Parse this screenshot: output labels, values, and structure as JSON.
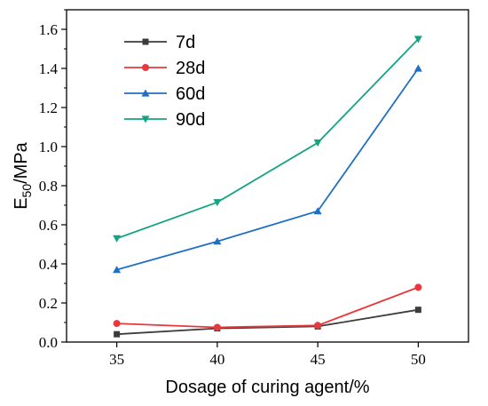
{
  "chart_data": {
    "type": "line",
    "x": [
      35,
      40,
      45,
      50
    ],
    "xlabel": "Dosage of curing agent/%",
    "ylabel": {
      "base": "E",
      "sub": "50",
      "rest": "/MPa"
    },
    "xlim": [
      32.5,
      52.5
    ],
    "ylim": [
      0,
      1.7
    ],
    "xticks": [
      35,
      40,
      45,
      50
    ],
    "yticks": [
      0.0,
      0.2,
      0.4,
      0.6,
      0.8,
      1.0,
      1.2,
      1.4,
      1.6
    ],
    "grid": false,
    "legend_position": "top-left",
    "series": [
      {
        "name": "7d",
        "marker": "square",
        "color": "#3c3c3c",
        "values": [
          0.04,
          0.07,
          0.08,
          0.165
        ]
      },
      {
        "name": "28d",
        "marker": "circle",
        "color": "#e8383d",
        "values": [
          0.095,
          0.075,
          0.085,
          0.28
        ]
      },
      {
        "name": "60d",
        "marker": "triangle-up",
        "color": "#1f6fc5",
        "values": [
          0.37,
          0.515,
          0.67,
          1.4
        ]
      },
      {
        "name": "90d",
        "marker": "triangle-down",
        "color": "#16a383",
        "values": [
          0.53,
          0.715,
          1.02,
          1.55
        ]
      }
    ]
  }
}
